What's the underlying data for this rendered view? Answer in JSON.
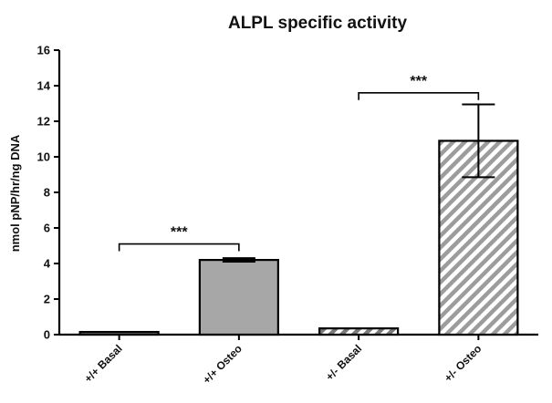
{
  "chart_data": {
    "type": "bar",
    "title": "ALPL specific activity",
    "xlabel": "",
    "ylabel": "nmol pNP/hr/ng DNA",
    "ylim": [
      0,
      16
    ],
    "yticks": [
      0,
      2,
      4,
      6,
      8,
      10,
      12,
      14,
      16
    ],
    "grid": false,
    "legend": "none",
    "categories": [
      "+/+ Basal",
      "+/+ Osteo",
      "+/- Basal",
      "+/- Osteo"
    ],
    "values": [
      0.15,
      4.2,
      0.35,
      10.9
    ],
    "errors": [
      0,
      0.1,
      0,
      2.05
    ],
    "bar_styles": [
      {
        "fill": "#6e6e6e",
        "pattern": "solid"
      },
      {
        "fill": "#a7a7a7",
        "pattern": "solid"
      },
      {
        "fill": "#7a7a7a",
        "pattern": "hatch"
      },
      {
        "fill": "#9c9c9c",
        "pattern": "hatch"
      }
    ],
    "colors": {
      "axis": "#000000",
      "hatch_bg": "#ffffff"
    },
    "annotations": [
      {
        "label": "***",
        "from": 0,
        "to": 1,
        "y": 5.1
      },
      {
        "label": "***",
        "from": 2,
        "to": 3,
        "y": 13.6
      }
    ]
  }
}
